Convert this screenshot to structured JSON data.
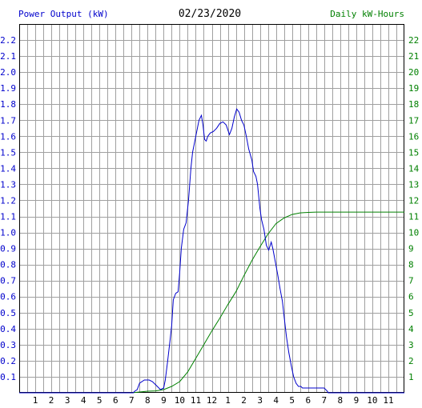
{
  "header": {
    "left_title": "Power Output (kW)",
    "date": "02/23/2020",
    "right_title": "Daily kW-Hours"
  },
  "chart_data": {
    "type": "line",
    "title": "02/23/2020",
    "ylabel": "Power Output (kW)",
    "y2label": "Daily kW-Hours",
    "ylim": [
      0,
      2.3
    ],
    "y2lim": [
      0,
      23
    ],
    "xlim": [
      0,
      24
    ],
    "grid": true,
    "x_ticks": [
      "1",
      "2",
      "3",
      "4",
      "5",
      "6",
      "7",
      "8",
      "9",
      "10",
      "11",
      "12",
      "1",
      "2",
      "3",
      "4",
      "5",
      "6",
      "7",
      "8",
      "9",
      "10",
      "11"
    ],
    "y_ticks": [
      "0.1",
      "0.2",
      "0.3",
      "0.4",
      "0.5",
      "0.6",
      "0.7",
      "0.8",
      "0.9",
      "1.0",
      "1.1",
      "1.2",
      "1.3",
      "1.4",
      "1.5",
      "1.6",
      "1.7",
      "1.8",
      "1.9",
      "2.0",
      "2.1",
      "2.2"
    ],
    "y2_ticks": [
      "1",
      "2",
      "3",
      "4",
      "5",
      "6",
      "7",
      "8",
      "9",
      "10",
      "11",
      "12",
      "13",
      "14",
      "15",
      "16",
      "17",
      "18",
      "19",
      "20",
      "21",
      "22"
    ],
    "colors": {
      "power": "#0000cc",
      "energy": "#008000",
      "grid": "#a0a0a0"
    },
    "series": [
      {
        "axis": "left",
        "x": [
          0,
          7.1,
          7.2,
          7.35,
          7.5,
          7.8,
          8.1,
          8.3,
          8.5,
          8.8,
          9.0,
          9.1,
          9.25,
          9.4,
          9.5,
          9.6,
          9.75,
          9.9,
          10.0,
          10.1,
          10.25,
          10.4,
          10.55,
          10.7,
          10.8,
          10.9,
          11.0,
          11.1,
          11.2,
          11.35,
          11.45,
          11.55,
          11.65,
          11.75,
          11.9,
          12.1,
          12.3,
          12.5,
          12.7,
          12.9,
          13.1,
          13.25,
          13.4,
          13.55,
          13.7,
          13.85,
          14.0,
          14.15,
          14.3,
          14.5,
          14.6,
          14.75,
          14.85,
          15.0,
          15.1,
          15.25,
          15.4,
          15.55,
          15.7,
          15.8,
          15.95,
          16.1,
          16.25,
          16.4,
          16.5,
          16.65,
          16.8,
          16.95,
          17.1,
          17.25,
          17.4,
          17.55,
          17.65,
          17.8,
          17.95,
          18.1,
          18.3,
          18.6,
          19.0,
          19.2,
          19.25,
          24.0
        ],
        "values": [
          0,
          0,
          0.01,
          0.02,
          0.06,
          0.08,
          0.08,
          0.07,
          0.05,
          0.02,
          0.03,
          0.08,
          0.2,
          0.33,
          0.42,
          0.58,
          0.62,
          0.63,
          0.75,
          0.9,
          1.02,
          1.06,
          1.2,
          1.4,
          1.5,
          1.55,
          1.6,
          1.65,
          1.7,
          1.73,
          1.67,
          1.58,
          1.57,
          1.6,
          1.62,
          1.63,
          1.65,
          1.68,
          1.69,
          1.67,
          1.61,
          1.65,
          1.72,
          1.77,
          1.75,
          1.7,
          1.67,
          1.6,
          1.52,
          1.45,
          1.38,
          1.35,
          1.3,
          1.15,
          1.08,
          1.02,
          0.92,
          0.89,
          0.94,
          0.9,
          0.82,
          0.74,
          0.65,
          0.57,
          0.48,
          0.35,
          0.25,
          0.17,
          0.1,
          0.06,
          0.04,
          0.04,
          0.03,
          0.03,
          0.03,
          0.03,
          0.03,
          0.03,
          0.03,
          0.01,
          0,
          0
        ]
      },
      {
        "axis": "right",
        "x": [
          0,
          7.0,
          7.5,
          8.0,
          8.5,
          9.0,
          9.5,
          10.0,
          10.5,
          11.0,
          11.5,
          12.0,
          12.5,
          13.0,
          13.5,
          14.0,
          14.5,
          15.0,
          15.5,
          16.0,
          16.5,
          17.0,
          17.5,
          18.0,
          18.5,
          19.0,
          24.0
        ],
        "values": [
          0,
          0,
          0.05,
          0.1,
          0.12,
          0.2,
          0.4,
          0.7,
          1.3,
          2.15,
          3.0,
          3.85,
          4.65,
          5.5,
          6.3,
          7.3,
          8.25,
          9.1,
          9.9,
          10.55,
          10.9,
          11.12,
          11.22,
          11.25,
          11.27,
          11.27,
          11.27
        ]
      }
    ]
  }
}
